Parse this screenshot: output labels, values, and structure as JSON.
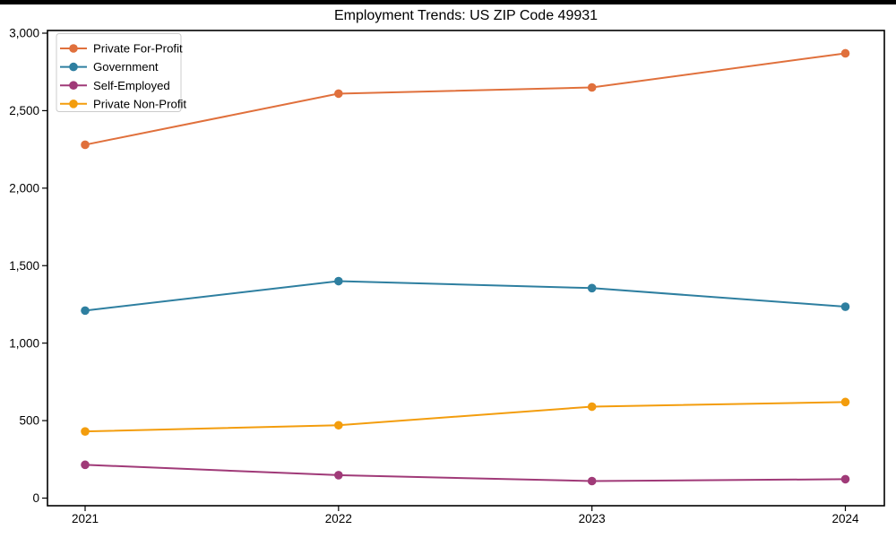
{
  "figure": {
    "background": "#ffffff",
    "top_bar_color": "#000000",
    "frame_color": "#000000"
  },
  "chart_data": {
    "type": "line",
    "title": "Employment Trends: US ZIP Code 49931",
    "xlabel": "",
    "ylabel": "",
    "categories": [
      "2021",
      "2022",
      "2023",
      "2024"
    ],
    "x_tick_labels": [
      "2021",
      "2022",
      "2023",
      "2024"
    ],
    "y_ticks": [
      0,
      500,
      1000,
      1500,
      2000,
      2500,
      3000
    ],
    "y_tick_labels": [
      "0",
      "500",
      "1,000",
      "1,500",
      "2,000",
      "2,500",
      "3,000"
    ],
    "ylim": [
      -50,
      3020
    ],
    "grid": false,
    "legend_position": "upper-left",
    "series": [
      {
        "name": "Private For-Profit",
        "color": "#e0703c",
        "values": [
          2280,
          2610,
          2650,
          2870
        ]
      },
      {
        "name": "Government",
        "color": "#2e7fa0",
        "values": [
          1210,
          1400,
          1355,
          1235
        ]
      },
      {
        "name": "Self-Employed",
        "color": "#a03a78",
        "values": [
          215,
          148,
          110,
          122
        ]
      },
      {
        "name": "Private Non-Profit",
        "color": "#f39d0d",
        "values": [
          430,
          470,
          590,
          620
        ]
      }
    ]
  }
}
